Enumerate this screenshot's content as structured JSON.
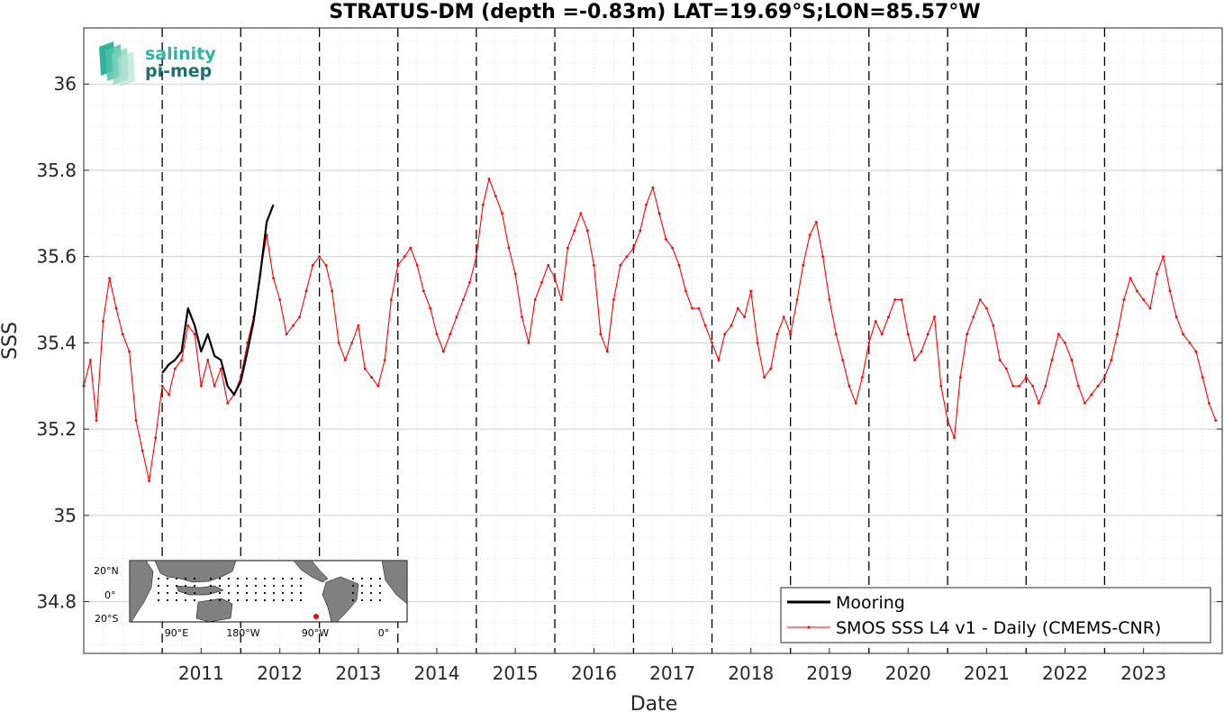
{
  "chart_data": {
    "type": "line",
    "title": "STRATUS-DM (depth =-0.83m) LAT=19.69°S;LON=85.57°W",
    "xlabel": "Date",
    "ylabel": "SSS",
    "xlim": [
      "2010-01-01",
      "2024-07-01"
    ],
    "ylim": [
      34.68,
      36.13
    ],
    "y_ticks": [
      34.8,
      35,
      35.2,
      35.4,
      35.6,
      35.8,
      36
    ],
    "y_tick_labels": [
      "34.8",
      "35",
      "35.2",
      "35.4",
      "35.6",
      "35.8",
      "36"
    ],
    "x_tick_labels": [
      "2011",
      "2012",
      "2013",
      "2014",
      "2015",
      "2016",
      "2017",
      "2018",
      "2019",
      "2020",
      "2021",
      "2022",
      "2023"
    ],
    "year_lines": [
      "2011",
      "2012",
      "2013",
      "2014",
      "2015",
      "2016",
      "2017",
      "2018",
      "2019",
      "2020",
      "2021",
      "2022",
      "2023"
    ],
    "grid": true,
    "legend_position": "bottom-right",
    "series": [
      {
        "name": "Mooring",
        "color": "#000000",
        "x": [
          "2011-01-01",
          "2011-02-01",
          "2011-03-01",
          "2011-04-01",
          "2011-05-01",
          "2011-06-01",
          "2011-07-01",
          "2011-08-01",
          "2011-09-01",
          "2011-10-01",
          "2011-11-01",
          "2011-12-01",
          "2012-01-01",
          "2012-02-01",
          "2012-03-01",
          "2012-04-01",
          "2012-05-01",
          "2012-06-01"
        ],
        "y": [
          35.33,
          35.35,
          35.36,
          35.38,
          35.48,
          35.44,
          35.38,
          35.42,
          35.37,
          35.36,
          35.3,
          35.28,
          35.31,
          35.38,
          35.45,
          35.56,
          35.68,
          35.72
        ]
      },
      {
        "name": "SMOS SSS L4 v1 - Daily (CMEMS-CNR)",
        "color": "#ff0000",
        "x": [
          "2010-01-01",
          "2010-02-01",
          "2010-03-01",
          "2010-04-01",
          "2010-05-01",
          "2010-06-01",
          "2010-07-01",
          "2010-08-01",
          "2010-09-01",
          "2010-10-01",
          "2010-11-01",
          "2010-12-01",
          "2011-01-01",
          "2011-02-01",
          "2011-03-01",
          "2011-04-01",
          "2011-05-01",
          "2011-06-01",
          "2011-07-01",
          "2011-08-01",
          "2011-09-01",
          "2011-10-01",
          "2011-11-01",
          "2011-12-01",
          "2012-01-01",
          "2012-02-01",
          "2012-03-01",
          "2012-04-01",
          "2012-05-01",
          "2012-06-01",
          "2012-07-01",
          "2012-08-01",
          "2012-09-01",
          "2012-10-01",
          "2012-11-01",
          "2012-12-01",
          "2013-01-01",
          "2013-02-01",
          "2013-03-01",
          "2013-04-01",
          "2013-05-01",
          "2013-06-01",
          "2013-07-01",
          "2013-08-01",
          "2013-09-01",
          "2013-10-01",
          "2013-11-01",
          "2013-12-01",
          "2014-01-01",
          "2014-02-01",
          "2014-03-01",
          "2014-04-01",
          "2014-05-01",
          "2014-06-01",
          "2014-07-01",
          "2014-08-01",
          "2014-09-01",
          "2014-10-01",
          "2014-11-01",
          "2014-12-01",
          "2015-01-01",
          "2015-02-01",
          "2015-03-01",
          "2015-04-01",
          "2015-05-01",
          "2015-06-01",
          "2015-07-01",
          "2015-08-01",
          "2015-09-01",
          "2015-10-01",
          "2015-11-01",
          "2015-12-01",
          "2016-01-01",
          "2016-02-01",
          "2016-03-01",
          "2016-04-01",
          "2016-05-01",
          "2016-06-01",
          "2016-07-01",
          "2016-08-01",
          "2016-09-01",
          "2016-10-01",
          "2016-11-01",
          "2016-12-01",
          "2017-01-01",
          "2017-02-01",
          "2017-03-01",
          "2017-04-01",
          "2017-05-01",
          "2017-06-01",
          "2017-07-01",
          "2017-08-01",
          "2017-09-01",
          "2017-10-01",
          "2017-11-01",
          "2017-12-01",
          "2018-01-01",
          "2018-02-01",
          "2018-03-01",
          "2018-04-01",
          "2018-05-01",
          "2018-06-01",
          "2018-07-01",
          "2018-08-01",
          "2018-09-01",
          "2018-10-01",
          "2018-11-01",
          "2018-12-01",
          "2019-01-01",
          "2019-02-01",
          "2019-03-01",
          "2019-04-01",
          "2019-05-01",
          "2019-06-01",
          "2019-07-01",
          "2019-08-01",
          "2019-09-01",
          "2019-10-01",
          "2019-11-01",
          "2019-12-01",
          "2020-01-01",
          "2020-02-01",
          "2020-03-01",
          "2020-04-01",
          "2020-05-01",
          "2020-06-01",
          "2020-07-01",
          "2020-08-01",
          "2020-09-01",
          "2020-10-01",
          "2020-11-01",
          "2020-12-01",
          "2021-01-01",
          "2021-02-01",
          "2021-03-01",
          "2021-04-01",
          "2021-05-01",
          "2021-06-01",
          "2021-07-01",
          "2021-08-01",
          "2021-09-01",
          "2021-10-01",
          "2021-11-01",
          "2021-12-01",
          "2022-01-01",
          "2022-02-01",
          "2022-03-01",
          "2022-04-01",
          "2022-05-01",
          "2022-06-01",
          "2022-07-01",
          "2022-08-01",
          "2022-09-01",
          "2022-10-01",
          "2022-11-01",
          "2022-12-01",
          "2023-01-01",
          "2023-02-01",
          "2023-03-01",
          "2023-04-01",
          "2023-05-01",
          "2023-06-01",
          "2023-07-01",
          "2023-08-01",
          "2023-09-01",
          "2023-10-01",
          "2023-11-01",
          "2023-12-01",
          "2024-01-01",
          "2024-02-01",
          "2024-03-01",
          "2024-04-01",
          "2024-05-01",
          "2024-06-01"
        ],
        "y": [
          35.3,
          35.36,
          35.22,
          35.45,
          35.55,
          35.48,
          35.42,
          35.38,
          35.22,
          35.15,
          35.08,
          35.18,
          35.3,
          35.28,
          35.34,
          35.36,
          35.44,
          35.42,
          35.3,
          35.36,
          35.3,
          35.34,
          35.26,
          35.28,
          35.32,
          35.4,
          35.46,
          35.56,
          35.65,
          35.55,
          35.5,
          35.42,
          35.44,
          35.46,
          35.52,
          35.58,
          35.6,
          35.58,
          35.52,
          35.4,
          35.36,
          35.4,
          35.44,
          35.34,
          35.32,
          35.3,
          35.36,
          35.5,
          35.58,
          35.6,
          35.62,
          35.58,
          35.52,
          35.48,
          35.42,
          35.38,
          35.42,
          35.46,
          35.5,
          35.54,
          35.6,
          35.72,
          35.78,
          35.74,
          35.7,
          35.62,
          35.56,
          35.46,
          35.4,
          35.5,
          35.54,
          35.58,
          35.55,
          35.5,
          35.62,
          35.66,
          35.7,
          35.66,
          35.58,
          35.42,
          35.38,
          35.5,
          35.58,
          35.6,
          35.62,
          35.66,
          35.72,
          35.76,
          35.7,
          35.64,
          35.62,
          35.58,
          35.52,
          35.48,
          35.48,
          35.44,
          35.4,
          35.36,
          35.42,
          35.44,
          35.48,
          35.46,
          35.52,
          35.4,
          35.32,
          35.34,
          35.42,
          35.46,
          35.42,
          35.5,
          35.58,
          35.65,
          35.68,
          35.6,
          35.5,
          35.42,
          35.36,
          35.3,
          35.26,
          35.32,
          35.4,
          35.45,
          35.42,
          35.46,
          35.5,
          35.5,
          35.42,
          35.36,
          35.38,
          35.42,
          35.46,
          35.3,
          35.22,
          35.18,
          35.32,
          35.42,
          35.46,
          35.5,
          35.48,
          35.44,
          35.36,
          35.34,
          35.3,
          35.3,
          35.32,
          35.3,
          35.26,
          35.3,
          35.36,
          35.42,
          35.4,
          35.36,
          35.3,
          35.26,
          35.28,
          35.3,
          35.32,
          35.36,
          35.42,
          35.5,
          35.55,
          35.52,
          35.5,
          35.48,
          35.56,
          35.6,
          35.52,
          35.46,
          35.42,
          35.4,
          35.38,
          35.32,
          35.26,
          35.22
        ]
      }
    ]
  },
  "legend": {
    "mooring_label": "Mooring",
    "smos_label": "SMOS SSS L4 v1 - Daily (CMEMS-CNR)"
  },
  "logo": {
    "line1": "salinity",
    "line2": "pi-mep"
  },
  "inset_map": {
    "lat_labels": [
      "20°N",
      "0°",
      "20°S"
    ],
    "lon_labels": [
      "90°E",
      "180°W",
      "90°W",
      "0°"
    ],
    "land_color": "#808080",
    "ocean_color": "#ffffff",
    "marker_color": "#ff0000"
  }
}
